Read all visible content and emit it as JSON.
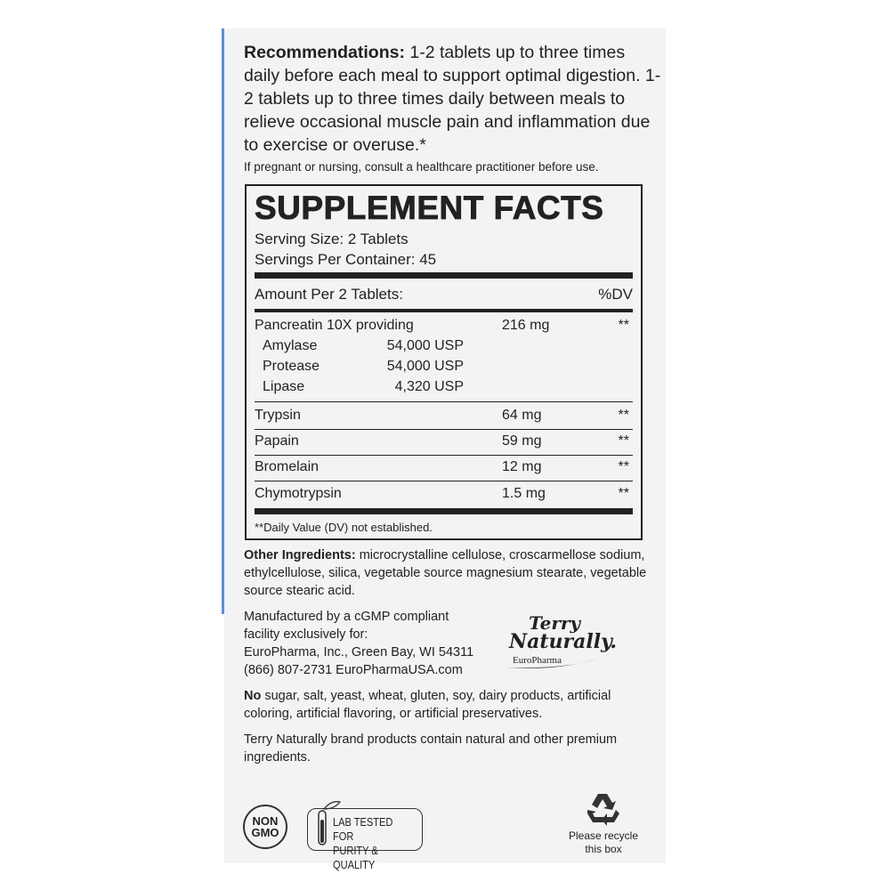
{
  "recommendations": {
    "label": "Recommendations:",
    "text": " 1-2 tablets up to three times daily before each meal to support optimal digestion. 1-2 tablets up to three times daily between meals to relieve occasional muscle pain and inflammation due to exercise or overuse.*"
  },
  "pregnancy_warning": "If pregnant or nursing, consult a healthcare practitioner before use.",
  "facts": {
    "title": "SUPPLEMENT FACTS",
    "serving_size": "Serving Size: 2 Tablets",
    "servings_per_container": "Servings Per Container: 45",
    "amount_header": "Amount Per 2 Tablets:",
    "dv_header": "%DV",
    "rows": [
      {
        "name": "Pancreatin 10X providing",
        "amount": "216 mg",
        "dv": "**"
      },
      {
        "name": "Amylase",
        "sub": "54,000 USP"
      },
      {
        "name": "Protease",
        "sub": "54,000 USP"
      },
      {
        "name": "Lipase",
        "sub": "4,320 USP"
      },
      {
        "name": "Trypsin",
        "amount": "64 mg",
        "dv": "**"
      },
      {
        "name": "Papain",
        "amount": "59 mg",
        "dv": "**"
      },
      {
        "name": "Bromelain",
        "amount": "12 mg",
        "dv": "**"
      },
      {
        "name": "Chymotrypsin",
        "amount": "1.5 mg",
        "dv": "**"
      }
    ],
    "footnote": "**Daily Value (DV) not established."
  },
  "other_ingredients": {
    "label": "Other Ingredients:",
    "text": " microcrystalline cellulose, croscarmellose sodium, ethylcellulose, silica, vegetable source magnesium stearate, vegetable source stearic acid."
  },
  "manufacturer": [
    "Manufactured by a cGMP compliant",
    "facility exclusively for:",
    "EuroPharma, Inc., Green Bay, WI 54311",
    "(866) 807-2731  EuroPharmaUSA.com"
  ],
  "logo": {
    "line1": "Terry",
    "line2": "Naturally.",
    "line3": "EuroPharma"
  },
  "free_from": {
    "label": "No",
    "text": " sugar, salt, yeast, wheat, gluten, soy, dairy products, artificial coloring, artificial flavoring, or artificial preservatives."
  },
  "brand_note": "Terry Naturally brand products contain natural and other premium ingredients.",
  "badges": {
    "non_gmo": [
      "NON",
      "GMO"
    ],
    "lab_tested": [
      "LAB TESTED FOR",
      "PURITY & QUALITY"
    ],
    "recycle": [
      "Please recycle",
      "this box"
    ]
  },
  "colors": {
    "accent_border": "#5b8fd6",
    "text": "#222222",
    "panel": "#f3f3f3"
  }
}
